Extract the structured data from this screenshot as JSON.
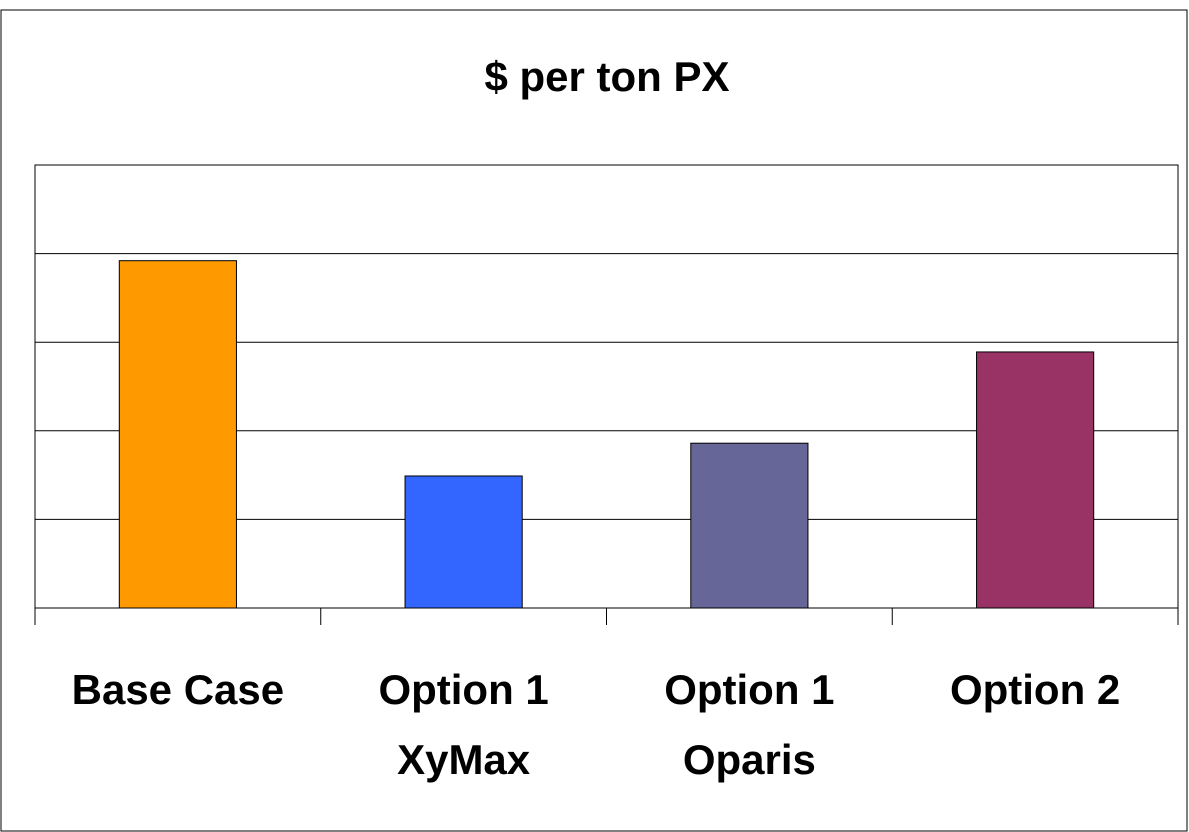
{
  "chart_data": {
    "type": "bar",
    "title": "$ per ton PX",
    "categories": [
      "Base Case",
      "Option 1\nXyMax",
      "Option 1\nOparis",
      "Option 2"
    ],
    "values": [
      3.92,
      1.49,
      1.86,
      2.89
    ],
    "colors": [
      "#ff9900",
      "#3366ff",
      "#666699",
      "#993366"
    ],
    "ylim": [
      0,
      5
    ],
    "yticks": [
      0,
      1,
      2,
      3,
      4,
      5
    ],
    "grid": true
  }
}
